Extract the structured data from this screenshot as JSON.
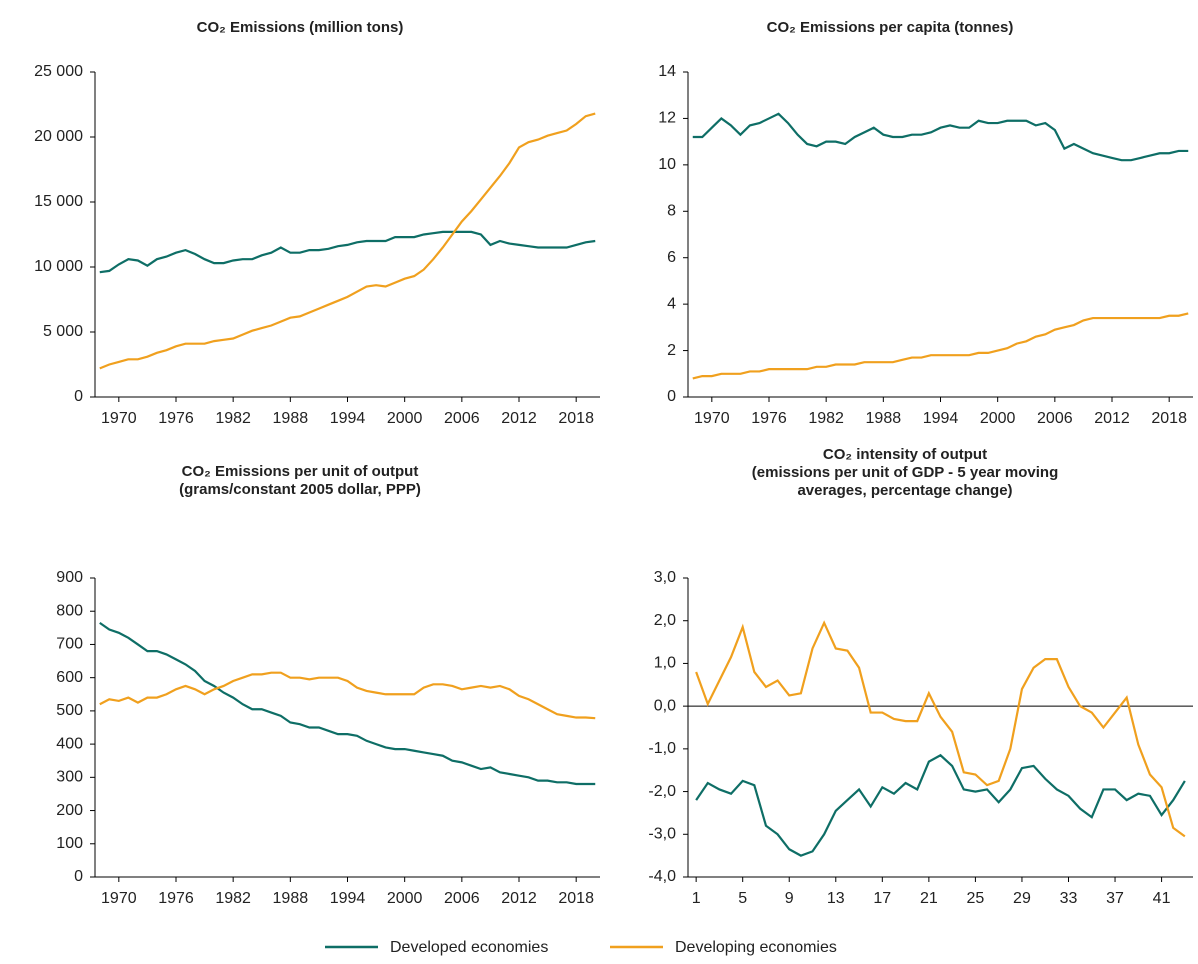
{
  "chart_data": [
    {
      "type": "line",
      "title": [
        "CO₂ Emissions (million tons)"
      ],
      "x": [
        1968,
        1969,
        1970,
        1971,
        1972,
        1973,
        1974,
        1975,
        1976,
        1977,
        1978,
        1979,
        1980,
        1981,
        1982,
        1983,
        1984,
        1985,
        1986,
        1987,
        1988,
        1989,
        1990,
        1991,
        1992,
        1993,
        1994,
        1995,
        1996,
        1997,
        1998,
        1999,
        2000,
        2001,
        2002,
        2003,
        2004,
        2005,
        2006,
        2007,
        2008,
        2009,
        2010,
        2011,
        2012,
        2013,
        2014,
        2015,
        2016,
        2017,
        2018,
        2019,
        2020
      ],
      "xlim": [
        1967.5,
        2020.5
      ],
      "xticks": [
        1970,
        1976,
        1982,
        1988,
        1994,
        2000,
        2006,
        2012,
        2018
      ],
      "ylim": [
        0,
        25000
      ],
      "yticks": [
        0,
        {
          "value": 5000,
          "label": "5 000"
        },
        {
          "value": 10000,
          "label": "10 000"
        },
        {
          "value": 15000,
          "label": "15 000"
        },
        {
          "value": 20000,
          "label": "20 000"
        },
        {
          "value": 25000,
          "label": "25 000"
        }
      ],
      "series": [
        {
          "name": "Developed economies",
          "color": "#0e6e66",
          "values": [
            9600,
            9700,
            10200,
            10600,
            10500,
            10100,
            10600,
            10800,
            11100,
            11300,
            11000,
            10600,
            10300,
            10300,
            10500,
            10600,
            10600,
            10900,
            11100,
            11500,
            11100,
            11100,
            11300,
            11300,
            11400,
            11600,
            11700,
            11900,
            12000,
            12000,
            12000,
            12300,
            12300,
            12300,
            12500,
            12600,
            12700,
            12700,
            12700,
            12700,
            12500,
            11700,
            12000,
            11800,
            11700,
            11600,
            11500,
            11500,
            11500,
            11500,
            11700,
            11900,
            12000
          ]
        },
        {
          "name": "Developing economies",
          "color": "#f0a01e",
          "values": [
            2200,
            2500,
            2700,
            2900,
            2900,
            3100,
            3400,
            3600,
            3900,
            4100,
            4100,
            4100,
            4300,
            4400,
            4500,
            4800,
            5100,
            5300,
            5500,
            5800,
            6100,
            6200,
            6500,
            6800,
            7100,
            7400,
            7700,
            8100,
            8500,
            8600,
            8500,
            8800,
            9100,
            9300,
            9800,
            10600,
            11500,
            12500,
            13500,
            14300,
            15200,
            16100,
            17000,
            18000,
            19200,
            19600,
            19800,
            20100,
            20300,
            20500,
            21000,
            21600,
            21800
          ]
        }
      ]
    },
    {
      "type": "line",
      "title": [
        "CO₂ Emissions per capita (tonnes)"
      ],
      "x": [
        1968,
        1969,
        1970,
        1971,
        1972,
        1973,
        1974,
        1975,
        1976,
        1977,
        1978,
        1979,
        1980,
        1981,
        1982,
        1983,
        1984,
        1985,
        1986,
        1987,
        1988,
        1989,
        1990,
        1991,
        1992,
        1993,
        1994,
        1995,
        1996,
        1997,
        1998,
        1999,
        2000,
        2001,
        2002,
        2003,
        2004,
        2005,
        2006,
        2007,
        2008,
        2009,
        2010,
        2011,
        2012,
        2013,
        2014,
        2015,
        2016,
        2017,
        2018,
        2019,
        2020
      ],
      "xlim": [
        1967.5,
        2020.5
      ],
      "xticks": [
        1970,
        1976,
        1982,
        1988,
        1994,
        2000,
        2006,
        2012,
        2018
      ],
      "ylim": [
        0,
        14
      ],
      "yticks": [
        0,
        2,
        4,
        6,
        8,
        10,
        12,
        14
      ],
      "series": [
        {
          "name": "Developed economies",
          "color": "#0e6e66",
          "values": [
            11.2,
            11.2,
            11.6,
            12.0,
            11.7,
            11.3,
            11.7,
            11.8,
            12.0,
            12.2,
            11.8,
            11.3,
            10.9,
            10.8,
            11.0,
            11.0,
            10.9,
            11.2,
            11.4,
            11.6,
            11.3,
            11.2,
            11.2,
            11.3,
            11.3,
            11.4,
            11.6,
            11.7,
            11.6,
            11.6,
            11.9,
            11.8,
            11.8,
            11.9,
            11.9,
            11.9,
            11.7,
            11.8,
            11.5,
            10.7,
            10.9,
            10.7,
            10.5,
            10.4,
            10.3,
            10.2,
            10.2,
            10.3,
            10.4,
            10.5,
            10.5,
            10.6,
            10.6
          ]
        },
        {
          "name": "Developing economies",
          "color": "#f0a01e",
          "values": [
            0.8,
            0.9,
            0.9,
            1.0,
            1.0,
            1.0,
            1.1,
            1.1,
            1.2,
            1.2,
            1.2,
            1.2,
            1.2,
            1.3,
            1.3,
            1.4,
            1.4,
            1.4,
            1.5,
            1.5,
            1.5,
            1.5,
            1.6,
            1.7,
            1.7,
            1.8,
            1.8,
            1.8,
            1.8,
            1.8,
            1.9,
            1.9,
            2.0,
            2.1,
            2.3,
            2.4,
            2.6,
            2.7,
            2.9,
            3.0,
            3.1,
            3.3,
            3.4,
            3.4,
            3.4,
            3.4,
            3.4,
            3.4,
            3.4,
            3.4,
            3.5,
            3.5,
            3.6
          ]
        }
      ]
    },
    {
      "type": "line",
      "title": [
        "CO₂ Emissions per unit of output",
        "(grams/constant 2005 dollar, PPP)"
      ],
      "x": [
        1968,
        1969,
        1970,
        1971,
        1972,
        1973,
        1974,
        1975,
        1976,
        1977,
        1978,
        1979,
        1980,
        1981,
        1982,
        1983,
        1984,
        1985,
        1986,
        1987,
        1988,
        1989,
        1990,
        1991,
        1992,
        1993,
        1994,
        1995,
        1996,
        1997,
        1998,
        1999,
        2000,
        2001,
        2002,
        2003,
        2004,
        2005,
        2006,
        2007,
        2008,
        2009,
        2010,
        2011,
        2012,
        2013,
        2014,
        2015,
        2016,
        2017,
        2018,
        2019,
        2020
      ],
      "xlim": [
        1967.5,
        2020.5
      ],
      "xticks": [
        1970,
        1976,
        1982,
        1988,
        1994,
        2000,
        2006,
        2012,
        2018
      ],
      "ylim": [
        0,
        900
      ],
      "yticks": [
        0,
        100,
        200,
        300,
        400,
        500,
        600,
        700,
        800,
        900
      ],
      "series": [
        {
          "name": "Developed economies",
          "color": "#0e6e66",
          "values": [
            765,
            745,
            735,
            720,
            700,
            680,
            680,
            670,
            655,
            640,
            620,
            590,
            575,
            555,
            540,
            520,
            505,
            505,
            495,
            485,
            465,
            460,
            450,
            450,
            440,
            430,
            430,
            425,
            410,
            400,
            390,
            385,
            385,
            380,
            375,
            370,
            365,
            350,
            345,
            335,
            325,
            330,
            315,
            310,
            305,
            300,
            290,
            290,
            285,
            285,
            280,
            280,
            280
          ]
        },
        {
          "name": "Developing economies",
          "color": "#f0a01e",
          "values": [
            520,
            535,
            530,
            540,
            525,
            540,
            540,
            550,
            565,
            575,
            565,
            550,
            565,
            575,
            590,
            600,
            610,
            610,
            615,
            615,
            600,
            600,
            595,
            600,
            600,
            600,
            590,
            570,
            560,
            555,
            550,
            550,
            550,
            550,
            570,
            580,
            580,
            575,
            565,
            570,
            575,
            570,
            575,
            565,
            545,
            535,
            520,
            505,
            490,
            485,
            480,
            480,
            478
          ]
        }
      ]
    },
    {
      "type": "line",
      "title": [
        "CO₂ intensity of output",
        "(emissions per unit of GDP - 5 year moving",
        "averages, percentage change)"
      ],
      "x": [
        1,
        2,
        3,
        4,
        5,
        6,
        7,
        8,
        9,
        10,
        11,
        12,
        13,
        14,
        15,
        16,
        17,
        18,
        19,
        20,
        21,
        22,
        23,
        24,
        25,
        26,
        27,
        28,
        29,
        30,
        31,
        32,
        33,
        34,
        35,
        36,
        37,
        38,
        39,
        40,
        41,
        42,
        43
      ],
      "xlim": [
        0.3,
        43.7
      ],
      "xticks": [
        1,
        5,
        9,
        13,
        17,
        21,
        25,
        29,
        33,
        37,
        41
      ],
      "ylim": [
        -4,
        3
      ],
      "reference_line": 0,
      "yticks": [
        {
          "value": -4,
          "label": "-4,0"
        },
        {
          "value": -3,
          "label": "-3,0"
        },
        {
          "value": -2,
          "label": "-2,0"
        },
        {
          "value": -1,
          "label": "-1,0"
        },
        {
          "value": 0,
          "label": "0,0"
        },
        {
          "value": 1,
          "label": "1,0"
        },
        {
          "value": 2,
          "label": "2,0"
        },
        {
          "value": 3,
          "label": "3,0"
        }
      ],
      "series": [
        {
          "name": "Developed economies",
          "color": "#0e6e66",
          "values": [
            -2.2,
            -1.8,
            -1.95,
            -2.05,
            -1.75,
            -1.85,
            -2.8,
            -3.0,
            -3.35,
            -3.5,
            -3.4,
            -3.0,
            -2.45,
            -2.2,
            -1.95,
            -2.35,
            -1.9,
            -2.05,
            -1.8,
            -1.95,
            -1.3,
            -1.15,
            -1.4,
            -1.95,
            -2.0,
            -1.95,
            -2.25,
            -1.95,
            -1.45,
            -1.4,
            -1.7,
            -1.95,
            -2.1,
            -2.4,
            -2.6,
            -1.95,
            -1.95,
            -2.2,
            -2.05,
            -2.1,
            -2.55,
            -2.2,
            -1.75
          ]
        },
        {
          "name": "Developing economies",
          "color": "#f0a01e",
          "values": [
            0.8,
            0.05,
            0.6,
            1.15,
            1.85,
            0.8,
            0.45,
            0.6,
            0.25,
            0.3,
            1.35,
            1.95,
            1.35,
            1.3,
            0.9,
            -0.15,
            -0.15,
            -0.3,
            -0.35,
            -0.35,
            0.3,
            -0.25,
            -0.6,
            -1.55,
            -1.6,
            -1.85,
            -1.75,
            -1.0,
            0.4,
            0.9,
            1.1,
            1.1,
            0.45,
            0.0,
            -0.15,
            -0.5,
            -0.15,
            0.2,
            -0.9,
            -1.6,
            -1.9,
            -2.85,
            -3.05
          ]
        }
      ]
    }
  ]
}
